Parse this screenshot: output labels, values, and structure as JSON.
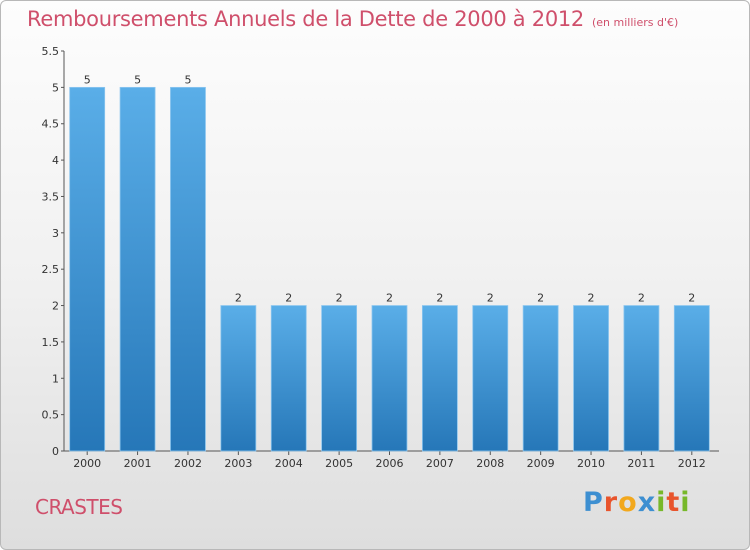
{
  "header": {
    "title": "Remboursements Annuels de la Dette de 2000 à 2012",
    "subtitle": "(en milliers d'€)"
  },
  "footer": {
    "commune": "CRASTES",
    "logo_text": "Proxiti",
    "logo_colors": [
      "#3d8fd1",
      "#e8542c",
      "#f2a81d",
      "#3d8fd1",
      "#77b82a",
      "#e8542c",
      "#77b82a"
    ]
  },
  "colors": {
    "title": "#cf4f6b",
    "bar_light": "#5aaee8",
    "bar_dark": "#2677b8"
  },
  "chart_data": {
    "type": "bar",
    "categories": [
      "2000",
      "2001",
      "2002",
      "2003",
      "2004",
      "2005",
      "2006",
      "2007",
      "2008",
      "2009",
      "2010",
      "2011",
      "2012"
    ],
    "values": [
      5,
      5,
      5,
      2,
      2,
      2,
      2,
      2,
      2,
      2,
      2,
      2,
      2
    ],
    "title": "Remboursements Annuels de la Dette de 2000 à 2012",
    "xlabel": "",
    "ylabel": "",
    "ylim": [
      0,
      5.5
    ],
    "yticks": [
      0,
      0.5,
      1,
      1.5,
      2,
      2.5,
      3,
      3.5,
      4,
      4.5,
      5,
      5.5
    ],
    "ytick_labels": [
      "0",
      "0.5",
      "1",
      "1.5",
      "2",
      "2.5",
      "3",
      "3.5",
      "4",
      "4.5",
      "5",
      "5.5"
    ],
    "grid": false,
    "data_labels": true
  }
}
